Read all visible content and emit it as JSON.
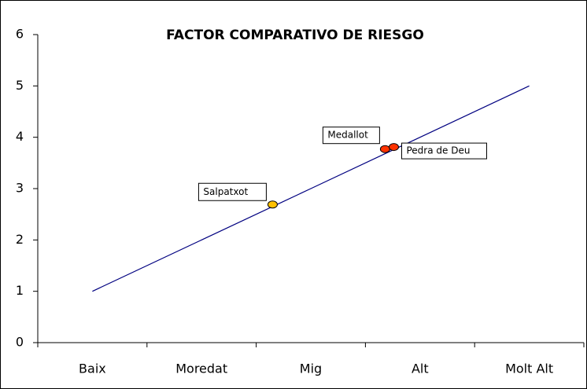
{
  "chart_data": {
    "type": "line",
    "title": "FACTOR COMPARATIVO DE RIESGO",
    "categories": [
      "Baix",
      "Moredat",
      "Mig",
      "Alt",
      "Molt Alt"
    ],
    "series": [
      {
        "color": "#000080",
        "values": [
          1,
          2,
          3,
          4,
          5
        ]
      }
    ],
    "points": [
      {
        "label": "Salpatxot",
        "x": 2.65,
        "y": 2.69,
        "color": "#ffc000"
      },
      {
        "label": "Medallot",
        "x": 3.68,
        "y": 3.77,
        "color": "#ff3300"
      },
      {
        "label": "Pedra de Deu",
        "x": 3.76,
        "y": 3.81,
        "color": "#ff3300"
      }
    ],
    "ylim": [
      0,
      6
    ],
    "yticks": [
      0,
      1,
      2,
      3,
      4,
      5,
      6
    ]
  }
}
